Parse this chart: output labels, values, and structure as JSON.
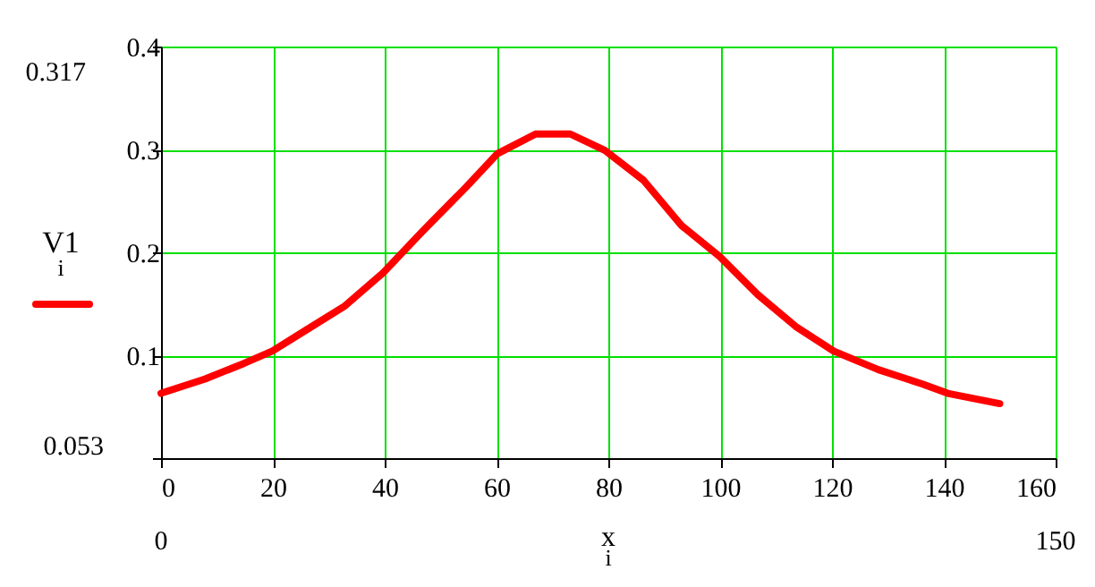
{
  "chart_data": {
    "type": "line",
    "xlabel": "x$_{i}$",
    "x": [
      0,
      7.9,
      14.8,
      19.9,
      26.1,
      32.9,
      39.7,
      46.5,
      54.5,
      60.2,
      67,
      73.2,
      79.4,
      86.3,
      93.1,
      99.9,
      106.7,
      113.5,
      120.3,
      128.3,
      136.2,
      140.7,
      150
    ],
    "series": [
      {
        "name": "V1$_{i}$",
        "color": "#ff0000",
        "values": [
          0.063,
          0.077,
          0.092,
          0.104,
          0.125,
          0.148,
          0.18,
          0.219,
          0.263,
          0.296,
          0.315,
          0.315,
          0.299,
          0.27,
          0.226,
          0.196,
          0.159,
          0.128,
          0.104,
          0.086,
          0.072,
          0.063,
          0.053
        ]
      }
    ],
    "xlim": [
      0,
      160
    ],
    "xticks": [
      0,
      20,
      40,
      60,
      80,
      100,
      120,
      140,
      160
    ],
    "ylim": [
      0,
      0.4
    ],
    "yticks": [
      {
        "value": 0,
        "label": null
      },
      0.1,
      0.2,
      0.3,
      0.4
    ],
    "annotations": [
      "0.317",
      "0.053",
      "0",
      "150"
    ],
    "grid": true,
    "legend": "left",
    "marker": "none",
    "line_style": "solid"
  }
}
